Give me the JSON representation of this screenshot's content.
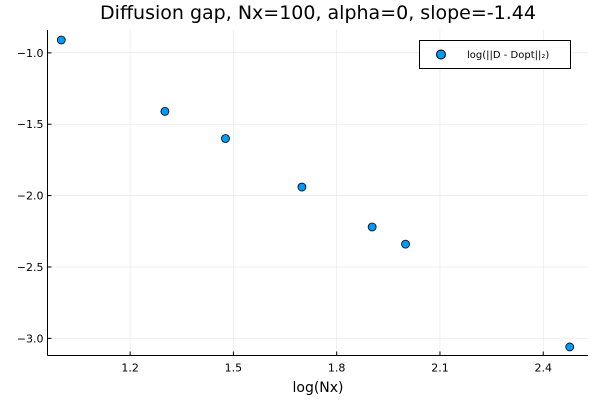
{
  "chart_data": {
    "type": "scatter",
    "title": "Diffusion gap, Nx=100, alpha=0, slope=-1.44",
    "xlabel": "log(Nx)",
    "ylabel": "",
    "xlim": [
      0.96,
      2.53
    ],
    "ylim": [
      -3.12,
      -0.84
    ],
    "xticks": [
      1.2,
      1.5,
      1.8,
      2.1,
      2.4
    ],
    "xtick_labels": [
      "1.2",
      "1.5",
      "1.8",
      "2.1",
      "2.4"
    ],
    "yticks": [
      -1.0,
      -1.5,
      -2.0,
      -2.5,
      -3.0
    ],
    "ytick_labels": [
      "−1.0",
      "−1.5",
      "−2.0",
      "−2.5",
      "−3.0"
    ],
    "grid": true,
    "legend_position": "top-right",
    "series": [
      {
        "name": "log(||D - Dopt||₂)",
        "color": "#009af9",
        "x": [
          1.0,
          1.301,
          1.477,
          1.699,
          1.903,
          2.0,
          2.477
        ],
        "y": [
          -0.91,
          -1.41,
          -1.6,
          -1.94,
          -2.22,
          -2.34,
          -3.06
        ]
      }
    ]
  }
}
